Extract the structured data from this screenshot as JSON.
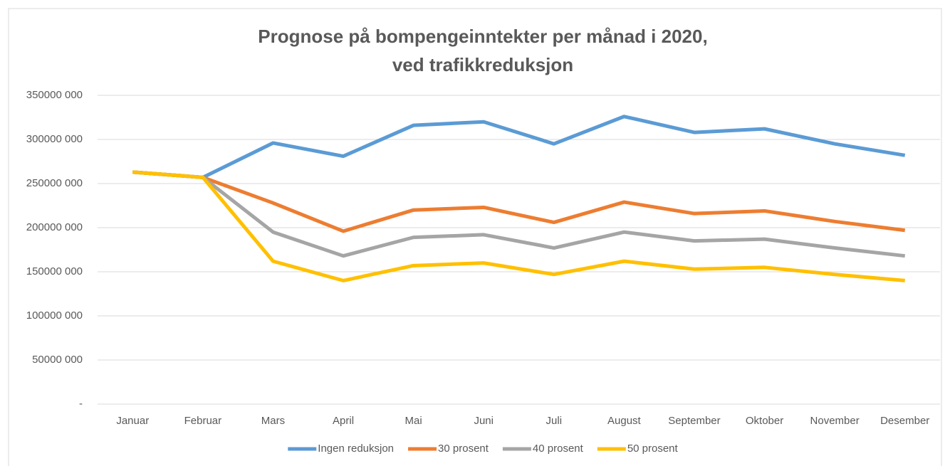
{
  "chart_data": {
    "type": "line",
    "title": [
      "Prognose på bompengeinntekter per månad i 2020,",
      "ved trafikkreduksjon"
    ],
    "categories": [
      "Januar",
      "Februar",
      "Mars",
      "April",
      "Mai",
      "Juni",
      "Juli",
      "August",
      "September",
      "Oktober",
      "November",
      "Desember"
    ],
    "series": [
      {
        "name": "Ingen reduksjon",
        "color": "#5b9bd5",
        "values": [
          263000000,
          257000000,
          296000000,
          281000000,
          316000000,
          320000000,
          295000000,
          326000000,
          308000000,
          312000000,
          295000000,
          282000000
        ]
      },
      {
        "name": "30 prosent",
        "color": "#ed7d31",
        "values": [
          263000000,
          257000000,
          228000000,
          196000000,
          220000000,
          223000000,
          206000000,
          229000000,
          216000000,
          219000000,
          207000000,
          197000000
        ]
      },
      {
        "name": "40 prosent",
        "color": "#a5a5a5",
        "values": [
          263000000,
          257000000,
          195000000,
          168000000,
          189000000,
          192000000,
          177000000,
          195000000,
          185000000,
          187000000,
          177000000,
          168000000
        ]
      },
      {
        "name": "50 prosent",
        "color": "#ffc000",
        "values": [
          263000000,
          257000000,
          162000000,
          140000000,
          157000000,
          160000000,
          147000000,
          162000000,
          153000000,
          155000000,
          147000000,
          140000000
        ]
      }
    ],
    "ylim": [
      0,
      350000000
    ],
    "yticks": [
      {
        "value": 0,
        "label": "-"
      },
      {
        "value": 50000000,
        "label": "50000 000"
      },
      {
        "value": 100000000,
        "label": "100000 000"
      },
      {
        "value": 150000000,
        "label": "150000 000"
      },
      {
        "value": 200000000,
        "label": "200000 000"
      },
      {
        "value": 250000000,
        "label": "250000 000"
      },
      {
        "value": 300000000,
        "label": "300000 000"
      },
      {
        "value": 350000000,
        "label": "350000 000"
      }
    ],
    "grid": true,
    "legend": "bottom"
  }
}
